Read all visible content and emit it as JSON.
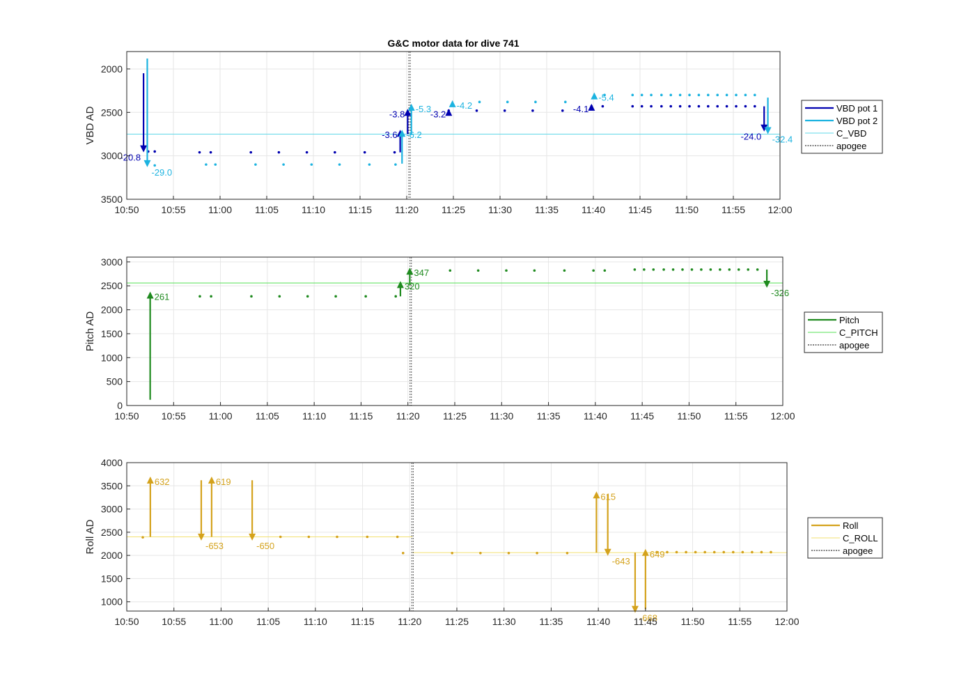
{
  "figure": {
    "title": "G&C motor data for dive 741"
  },
  "colors": {
    "vbd_pot1": "#0000b0",
    "vbd_pot2": "#1cb3e0",
    "c_vbd": "#5fd8e8",
    "pitch": "#1f8a1f",
    "c_pitch": "#55e055",
    "roll": "#d4a21c",
    "c_roll": "#f2e070",
    "apogee": "#555555",
    "grid": "#e6e6e6",
    "axis": "#262626"
  },
  "chart_data": [
    {
      "id": "vbd",
      "type": "scatter",
      "ylabel": "VBD AD",
      "xlabel": "",
      "ylim": [
        3500,
        1800
      ],
      "y_reversed": true,
      "yticks": [
        2000,
        2500,
        3000,
        3500
      ],
      "xlim": [
        "10:50",
        "12:00"
      ],
      "xticks": [
        "10:50",
        "10:55",
        "11:00",
        "11:05",
        "11:10",
        "11:15",
        "11:20",
        "11:25",
        "11:30",
        "11:35",
        "11:40",
        "11:45",
        "11:50",
        "11:55",
        "12:00"
      ],
      "grid": true,
      "legend": {
        "position": "outside-right",
        "entries": [
          {
            "label": "VBD pot 1",
            "style": "line",
            "color_key": "vbd_pot1"
          },
          {
            "label": "VBD pot 2",
            "style": "line",
            "color_key": "vbd_pot2"
          },
          {
            "label": "C_VBD",
            "style": "thin",
            "color_key": "c_vbd"
          },
          {
            "label": "apogee",
            "style": "dotted",
            "color_key": "apogee"
          }
        ]
      },
      "reference_line": {
        "y": 2750,
        "color_key": "c_vbd"
      },
      "apogee": "11:20.3",
      "series": [
        {
          "name": "VBD pot 1",
          "color_key": "vbd_pot1",
          "points": [
            [
              "10:52.3",
              2950
            ],
            [
              "10:53.0",
              2950
            ],
            [
              "10:57.8",
              2960
            ],
            [
              "10:59.0",
              2960
            ],
            [
              "11:03.3",
              2960
            ],
            [
              "11:06.3",
              2960
            ],
            [
              "11:09.3",
              2960
            ],
            [
              "11:12.3",
              2960
            ],
            [
              "11:15.5",
              2960
            ],
            [
              "11:18.7",
              2960
            ],
            [
              "11:24.5",
              2480
            ],
            [
              "11:27.5",
              2480
            ],
            [
              "11:30.5",
              2480
            ],
            [
              "11:33.5",
              2480
            ],
            [
              "11:36.7",
              2480
            ],
            [
              "11:39.8",
              2430
            ],
            [
              "11:41.0",
              2430
            ],
            [
              "11:44.2",
              2430
            ],
            [
              "11:45.2",
              2430
            ],
            [
              "11:46.2",
              2430
            ],
            [
              "11:47.3",
              2430
            ],
            [
              "11:48.3",
              2430
            ],
            [
              "11:49.3",
              2430
            ],
            [
              "11:50.3",
              2430
            ],
            [
              "11:51.3",
              2430
            ],
            [
              "11:52.3",
              2430
            ],
            [
              "11:53.3",
              2430
            ],
            [
              "11:54.3",
              2430
            ],
            [
              "11:55.3",
              2430
            ],
            [
              "11:56.3",
              2430
            ],
            [
              "11:57.3",
              2430
            ]
          ],
          "arrows": [
            {
              "t": "10:51.8",
              "from": 2050,
              "to": 2960,
              "label": "-20.8",
              "side": "left"
            },
            {
              "t": "11:19.3",
              "from": 2960,
              "to": 2700,
              "label": "-3.6",
              "side": "left"
            },
            {
              "t": "11:20.1",
              "from": 2750,
              "to": 2460,
              "label": "-3.8",
              "side": "left"
            },
            {
              "t": "11:24.5",
              "from": 2500,
              "to": 2460,
              "label": "-3.2",
              "side": "left"
            },
            {
              "t": "11:39.8",
              "from": 2460,
              "to": 2400,
              "label": "-4.1",
              "side": "left"
            },
            {
              "t": "11:58.3",
              "from": 2430,
              "to": 2720,
              "label": "-24.0",
              "side": "left"
            }
          ]
        },
        {
          "name": "VBD pot 2",
          "color_key": "vbd_pot2",
          "points": [
            [
              "10:53.0",
              3110
            ],
            [
              "10:58.5",
              3100
            ],
            [
              "10:59.5",
              3100
            ],
            [
              "11:03.8",
              3100
            ],
            [
              "11:06.8",
              3100
            ],
            [
              "11:09.8",
              3100
            ],
            [
              "11:12.8",
              3100
            ],
            [
              "11:16.0",
              3100
            ],
            [
              "11:18.8",
              3100
            ],
            [
              "11:27.8",
              2380
            ],
            [
              "11:30.8",
              2380
            ],
            [
              "11:33.8",
              2380
            ],
            [
              "11:37.0",
              2380
            ],
            [
              "11:41.2",
              2300
            ],
            [
              "11:44.2",
              2300
            ],
            [
              "11:45.2",
              2300
            ],
            [
              "11:46.2",
              2300
            ],
            [
              "11:47.3",
              2300
            ],
            [
              "11:48.3",
              2300
            ],
            [
              "11:49.3",
              2300
            ],
            [
              "11:50.3",
              2300
            ],
            [
              "11:51.3",
              2300
            ],
            [
              "11:52.3",
              2300
            ],
            [
              "11:53.3",
              2300
            ],
            [
              "11:54.3",
              2300
            ],
            [
              "11:55.3",
              2300
            ],
            [
              "11:56.3",
              2300
            ],
            [
              "11:57.3",
              2300
            ]
          ],
          "arrows": [
            {
              "t": "10:52.2",
              "from": 1880,
              "to": 3130,
              "label": "-29.0",
              "side": "right"
            },
            {
              "t": "11:19.5",
              "from": 3090,
              "to": 2700,
              "label": "-6.2",
              "side": "right"
            },
            {
              "t": "11:20.5",
              "from": 2760,
              "to": 2400,
              "label": "-5.3",
              "side": "right"
            },
            {
              "t": "11:24.9",
              "from": 2410,
              "to": 2360,
              "label": "-4.2",
              "side": "right"
            },
            {
              "t": "11:40.1",
              "from": 2330,
              "to": 2270,
              "label": "-5.4",
              "side": "right"
            },
            {
              "t": "11:58.7",
              "from": 2330,
              "to": 2750,
              "label": "-32.4",
              "side": "right"
            }
          ]
        }
      ]
    },
    {
      "id": "pitch",
      "type": "scatter",
      "ylabel": "Pitch AD",
      "xlabel": "",
      "ylim": [
        0,
        3100
      ],
      "yticks": [
        0,
        500,
        1000,
        1500,
        2000,
        2500,
        3000
      ],
      "xlim": [
        "10:50",
        "12:00"
      ],
      "xticks": [
        "10:50",
        "10:55",
        "11:00",
        "11:05",
        "11:10",
        "11:15",
        "11:20",
        "11:25",
        "11:30",
        "11:35",
        "11:40",
        "11:45",
        "11:50",
        "11:55",
        "12:00"
      ],
      "grid": true,
      "legend": {
        "position": "outside-right",
        "entries": [
          {
            "label": "Pitch",
            "style": "line",
            "color_key": "pitch"
          },
          {
            "label": "C_PITCH",
            "style": "thin",
            "color_key": "c_pitch"
          },
          {
            "label": "apogee",
            "style": "dotted",
            "color_key": "apogee"
          }
        ]
      },
      "reference_line": {
        "y": 2560,
        "color_key": "c_pitch"
      },
      "apogee": "11:20.3",
      "series": [
        {
          "name": "Pitch",
          "color_key": "pitch",
          "points": [
            [
              "10:57.8",
              2280
            ],
            [
              "10:59.0",
              2280
            ],
            [
              "11:03.3",
              2280
            ],
            [
              "11:06.3",
              2280
            ],
            [
              "11:09.3",
              2280
            ],
            [
              "11:12.3",
              2280
            ],
            [
              "11:15.5",
              2280
            ],
            [
              "11:18.7",
              2280
            ],
            [
              "11:24.5",
              2820
            ],
            [
              "11:27.5",
              2820
            ],
            [
              "11:30.5",
              2820
            ],
            [
              "11:33.5",
              2820
            ],
            [
              "11:36.7",
              2820
            ],
            [
              "11:39.8",
              2820
            ],
            [
              "11:41.0",
              2820
            ],
            [
              "11:44.2",
              2840
            ],
            [
              "11:45.2",
              2840
            ],
            [
              "11:46.2",
              2840
            ],
            [
              "11:47.3",
              2840
            ],
            [
              "11:48.3",
              2840
            ],
            [
              "11:49.3",
              2840
            ],
            [
              "11:50.3",
              2840
            ],
            [
              "11:51.3",
              2840
            ],
            [
              "11:52.3",
              2840
            ],
            [
              "11:53.3",
              2840
            ],
            [
              "11:54.3",
              2840
            ],
            [
              "11:55.3",
              2840
            ],
            [
              "11:56.3",
              2840
            ],
            [
              "11:57.3",
              2840
            ]
          ],
          "arrows": [
            {
              "t": "10:52.5",
              "from": 120,
              "to": 2380,
              "label": "261",
              "side": "right"
            },
            {
              "t": "11:19.2",
              "from": 2280,
              "to": 2600,
              "label": "320",
              "side": "right"
            },
            {
              "t": "11:20.2",
              "from": 2520,
              "to": 2880,
              "label": "347",
              "side": "right"
            },
            {
              "t": "11:58.3",
              "from": 2840,
              "to": 2460,
              "label": "-326",
              "side": "right"
            }
          ]
        }
      ]
    },
    {
      "id": "roll",
      "type": "scatter",
      "ylabel": "Roll AD",
      "xlabel": "",
      "ylim": [
        800,
        4000
      ],
      "yticks": [
        1000,
        1500,
        2000,
        2500,
        3000,
        3500,
        4000
      ],
      "xlim": [
        "10:50",
        "12:00"
      ],
      "xticks": [
        "10:50",
        "10:55",
        "11:00",
        "11:05",
        "11:10",
        "11:15",
        "11:20",
        "11:25",
        "11:30",
        "11:35",
        "11:40",
        "11:45",
        "11:50",
        "11:55",
        "12:00"
      ],
      "grid": true,
      "legend": {
        "position": "outside-right",
        "entries": [
          {
            "label": "Roll",
            "style": "line",
            "color_key": "roll"
          },
          {
            "label": "C_ROLL",
            "style": "thin",
            "color_key": "c_roll"
          },
          {
            "label": "apogee",
            "style": "dotted",
            "color_key": "apogee"
          }
        ]
      },
      "reference_lines": [
        {
          "x_from": "10:50",
          "x_to": "11:20.3",
          "y": 2400,
          "color_key": "c_roll"
        },
        {
          "x_from": "11:20.3",
          "x_to": "12:00",
          "y": 2060,
          "color_key": "c_roll"
        }
      ],
      "apogee": "11:20.3",
      "series": [
        {
          "name": "Roll",
          "color_key": "roll",
          "points": [
            [
              "10:51.7",
              2390
            ],
            [
              "11:06.3",
              2400
            ],
            [
              "11:09.3",
              2400
            ],
            [
              "11:12.3",
              2400
            ],
            [
              "11:15.5",
              2400
            ],
            [
              "11:18.7",
              2400
            ],
            [
              "11:19.3",
              2050
            ],
            [
              "11:24.5",
              2050
            ],
            [
              "11:27.5",
              2050
            ],
            [
              "11:30.5",
              2050
            ],
            [
              "11:33.5",
              2050
            ],
            [
              "11:36.7",
              2050
            ],
            [
              "11:46.2",
              2070
            ],
            [
              "11:47.3",
              2070
            ],
            [
              "11:48.3",
              2070
            ],
            [
              "11:49.3",
              2070
            ],
            [
              "11:50.3",
              2070
            ],
            [
              "11:51.3",
              2070
            ],
            [
              "11:52.3",
              2070
            ],
            [
              "11:53.3",
              2070
            ],
            [
              "11:54.3",
              2070
            ],
            [
              "11:55.3",
              2070
            ],
            [
              "11:56.3",
              2070
            ],
            [
              "11:57.3",
              2070
            ],
            [
              "11:58.3",
              2070
            ]
          ],
          "arrows": [
            {
              "t": "10:52.5",
              "from": 2400,
              "to": 3700,
              "label": "632",
              "side": "right"
            },
            {
              "t": "10:57.9",
              "from": 3620,
              "to": 2320,
              "label": "-653",
              "side": "right"
            },
            {
              "t": "10:59.0",
              "from": 2400,
              "to": 3700,
              "label": "619",
              "side": "right"
            },
            {
              "t": "11:03.3",
              "from": 3620,
              "to": 2320,
              "label": "-650",
              "side": "right"
            },
            {
              "t": "11:39.8",
              "from": 2060,
              "to": 3380,
              "label": "615",
              "side": "right"
            },
            {
              "t": "11:41.0",
              "from": 3320,
              "to": 1990,
              "label": "-643",
              "side": "right"
            },
            {
              "t": "11:43.9",
              "from": 2060,
              "to": 760,
              "label": "-668",
              "side": "right"
            },
            {
              "t": "11:45.0",
              "from": 840,
              "to": 2140,
              "label": "649",
              "side": "right"
            }
          ]
        }
      ]
    }
  ]
}
